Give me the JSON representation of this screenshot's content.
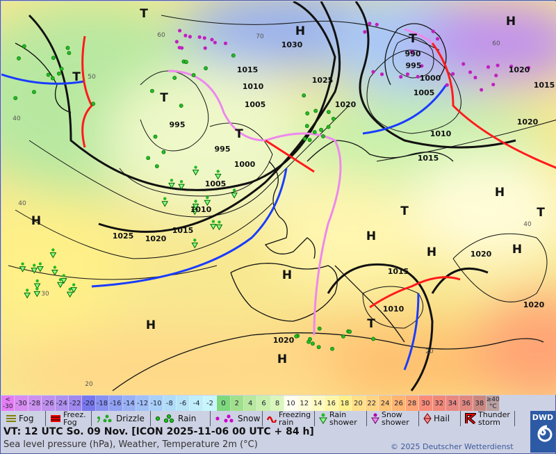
{
  "map": {
    "pressure_labels": [
      "1030",
      "1015",
      "1010",
      "1005",
      "1025",
      "1020",
      "995",
      "995",
      "1000",
      "1005",
      "1010",
      "1015",
      "1020",
      "1025",
      "990",
      "995",
      "1000",
      "1005",
      "1010",
      "1015",
      "1020",
      "1020",
      "1015",
      "1020",
      "1015",
      "1010",
      "1020",
      "1020"
    ],
    "system_labels": [
      "T",
      "H",
      "H",
      "T",
      "T",
      "T",
      "T",
      "H",
      "T",
      "T",
      "H",
      "H",
      "H",
      "H",
      "H",
      "H",
      "T",
      "H"
    ],
    "temp_labels": [
      "60",
      "70",
      "60",
      "50",
      "40",
      "40",
      "40",
      "30",
      "20",
      "20"
    ]
  },
  "scale": {
    "values": [
      "<\n-30",
      "-30",
      "-28",
      "-26",
      "-24",
      "-22",
      "-20",
      "-18",
      "-16",
      "-14",
      "-12",
      "-10",
      "-8",
      "-6",
      "-4",
      "-2",
      "0",
      "2",
      "4",
      "6",
      "8",
      "10",
      "12",
      "14",
      "16",
      "18",
      "20",
      "22",
      "24",
      "26",
      "28",
      "30",
      "32",
      "34",
      "36",
      "38",
      "≥40\n°C"
    ],
    "colors": [
      "#e47cf4",
      "#d88cf0",
      "#cc90ee",
      "#c090ee",
      "#b090ee",
      "#a088ee",
      "#7878ee",
      "#8890f0",
      "#90a0f2",
      "#98b0f4",
      "#a0c0f6",
      "#a8d0f8",
      "#b0dcf8",
      "#b8e4f8",
      "#c0eefa",
      "#c8f6fc",
      "#7ed87e",
      "#a0e08c",
      "#b8e8a0",
      "#c8f0ac",
      "#daf6bc",
      "#fffff0",
      "#fffcd8",
      "#fffac0",
      "#fff6a8",
      "#fff088",
      "#ffe088",
      "#ffd484",
      "#ffc474",
      "#ffb470",
      "#ffa474",
      "#f88c78",
      "#f08878",
      "#e88880",
      "#e08880",
      "#c88880",
      "#b8a0a0"
    ]
  },
  "legend": {
    "items": [
      {
        "label": "Fog",
        "icon": "fog-icon"
      },
      {
        "label": "Freez.\nFog",
        "icon": "freezing-fog-icon"
      },
      {
        "label": "Drizzle",
        "icon": "drizzle-icon"
      },
      {
        "label": "Rain",
        "icon": "rain-icon"
      },
      {
        "label": "Snow",
        "icon": "snow-icon"
      },
      {
        "label": "Freezing\nrain",
        "icon": "freezing-rain-icon"
      },
      {
        "label": "Rain\nshower",
        "icon": "rain-shower-icon"
      },
      {
        "label": "Snow\nshower",
        "icon": "snow-shower-icon"
      },
      {
        "label": "Hail",
        "icon": "hail-icon"
      },
      {
        "label": "Thunder\nstorm",
        "icon": "thunderstorm-icon"
      }
    ]
  },
  "footer": {
    "valid_time": "VT: 12 UTC So.  09 Nov. [ICON 2025-11-06  00 UTC + 84 h]",
    "subtitle": "Sea level pressure (hPa), Weather, Temperature 2m (°C)",
    "copyright": "© 2025 Deutscher Wetterdienst",
    "logo_text": "DWD"
  }
}
